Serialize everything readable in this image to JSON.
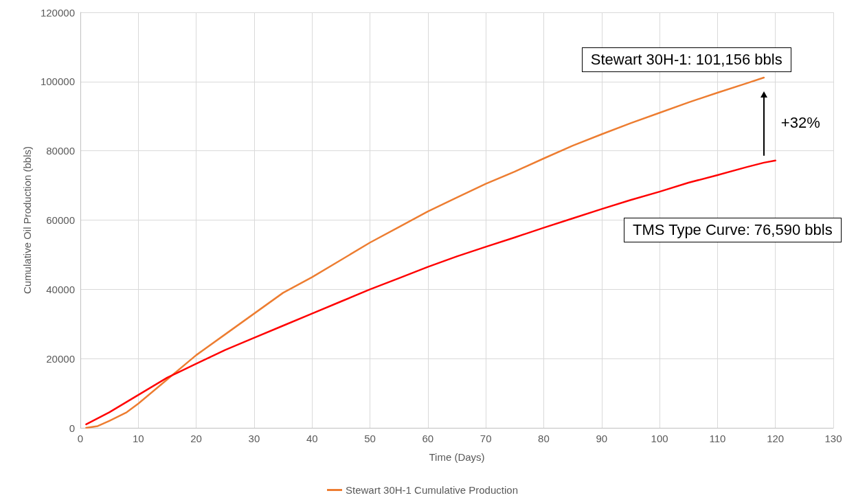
{
  "chart_data": {
    "type": "line",
    "xlabel": "Time (Days)",
    "ylabel": "Cumulative Oil Production (bbls)",
    "xlim": [
      0,
      130
    ],
    "xticks": [
      0,
      10,
      20,
      30,
      40,
      50,
      60,
      70,
      80,
      90,
      100,
      110,
      120,
      130
    ],
    "ylim": [
      0,
      120000
    ],
    "yticks": [
      0,
      20000,
      40000,
      60000,
      80000,
      100000,
      120000
    ],
    "grid": true,
    "legend": "bottom",
    "marker": "none",
    "line_style": "solid",
    "series": [
      {
        "name": "Stewart 30H-1 Cumulative Production",
        "color": "#ed7d31",
        "x": [
          1,
          3,
          5,
          8,
          10,
          15,
          20,
          25,
          30,
          35,
          40,
          45,
          50,
          55,
          60,
          65,
          70,
          75,
          80,
          85,
          90,
          95,
          100,
          105,
          110,
          115,
          118
        ],
        "values": [
          0,
          500,
          2000,
          4500,
          7000,
          14000,
          21000,
          27000,
          33000,
          39000,
          43500,
          48500,
          53500,
          58000,
          62500,
          66500,
          70500,
          74000,
          77800,
          81500,
          84800,
          88000,
          91000,
          94000,
          96800,
          99500,
          101156
        ]
      },
      {
        "color": "#ff0000",
        "x": [
          1,
          5,
          10,
          15,
          20,
          25,
          30,
          35,
          40,
          45,
          50,
          55,
          60,
          65,
          70,
          75,
          80,
          85,
          90,
          95,
          100,
          105,
          110,
          115,
          118,
          120
        ],
        "values": [
          1000,
          4500,
          9500,
          14500,
          18500,
          22500,
          26000,
          29500,
          33000,
          36500,
          40000,
          43200,
          46500,
          49500,
          52300,
          55000,
          57800,
          60500,
          63200,
          65800,
          68200,
          70800,
          73000,
          75300,
          76590,
          77200
        ]
      }
    ],
    "annotations": [
      {
        "text": "Stewart 30H-1: 101,156 bbls",
        "x": 118,
        "y": 101156
      },
      "TMS Type Curve: 76,590 bbls",
      "+32%"
    ]
  }
}
